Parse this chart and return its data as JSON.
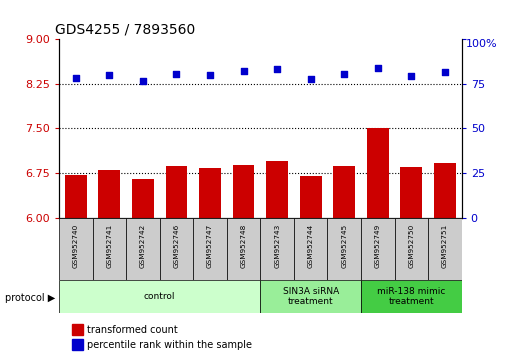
{
  "title": "GDS4255 / 7893560",
  "samples": [
    "GSM952740",
    "GSM952741",
    "GSM952742",
    "GSM952746",
    "GSM952747",
    "GSM952748",
    "GSM952743",
    "GSM952744",
    "GSM952745",
    "GSM952749",
    "GSM952750",
    "GSM952751"
  ],
  "bar_values": [
    6.72,
    6.8,
    6.65,
    6.87,
    6.83,
    6.89,
    6.95,
    6.7,
    6.87,
    7.5,
    6.85,
    6.92
  ],
  "scatter_values": [
    8.35,
    8.4,
    8.3,
    8.42,
    8.4,
    8.46,
    8.49,
    8.32,
    8.42,
    8.51,
    8.38,
    8.44
  ],
  "bar_color": "#cc0000",
  "scatter_color": "#0000cc",
  "ylim_left": [
    6,
    9
  ],
  "ylim_right": [
    0,
    100
  ],
  "yticks_left": [
    6,
    6.75,
    7.5,
    8.25,
    9
  ],
  "yticks_right": [
    0,
    25,
    50,
    75,
    100
  ],
  "groups": [
    {
      "label": "control",
      "start": 0,
      "end": 6,
      "color": "#ccffcc"
    },
    {
      "label": "SIN3A siRNA\ntreatment",
      "start": 6,
      "end": 9,
      "color": "#99ee99"
    },
    {
      "label": "miR-138 mimic\ntreatment",
      "start": 9,
      "end": 12,
      "color": "#44cc44"
    }
  ],
  "legend_bar_label": "transformed count",
  "legend_scatter_label": "percentile rank within the sample",
  "protocol_label": "protocol",
  "bar_color_leg": "#cc0000",
  "scatter_color_leg": "#0000cc",
  "tick_color_left": "#cc0000",
  "tick_color_right": "#0000cc",
  "grid_color": "#000000",
  "sample_box_color": "#cccccc",
  "bar_width": 0.65,
  "title_fontsize": 10,
  "ytick_fontsize": 8
}
